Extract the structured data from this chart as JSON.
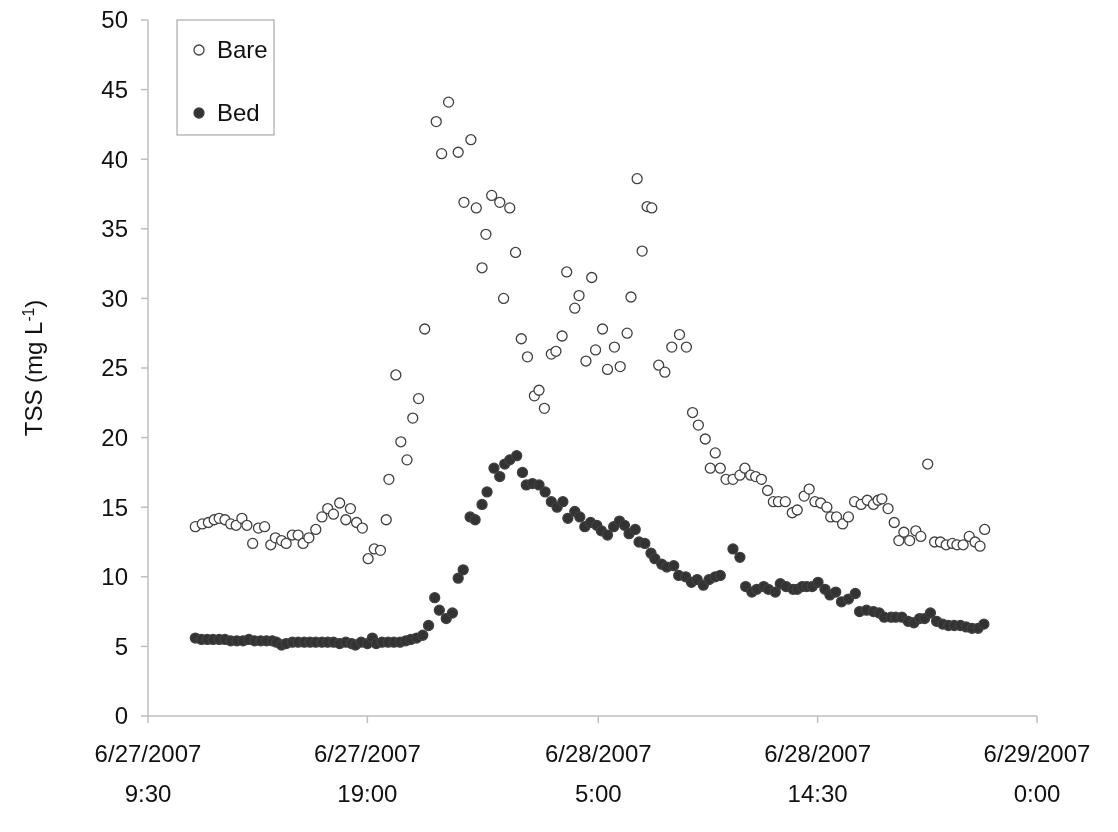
{
  "chart_data": {
    "type": "scatter",
    "ylabel": "TSS (mg L$^{-1}$)",
    "xlim": [
      "2007-06-27T09:30",
      "2007-06-29T00:00"
    ],
    "ylim": [
      0,
      50
    ],
    "xticks": [
      {
        "value": "2007-06-27T09:30",
        "label": "6/27/2007\n9:30"
      },
      {
        "value": "2007-06-27T19:00",
        "label": "6/27/2007\n19:00"
      },
      {
        "value": "2007-06-28T05:00",
        "label": "6/28/2007\n5:00"
      },
      {
        "value": "2007-06-28T14:30",
        "label": "6/28/2007\n14:30"
      },
      {
        "value": "2007-06-29T00:00",
        "label": "6/29/2007\n0:00"
      }
    ],
    "yticks": [
      0,
      5,
      10,
      15,
      20,
      25,
      30,
      35,
      40,
      45,
      50
    ],
    "legend": "top left",
    "marker": "circle",
    "series": [
      {
        "name": "Bare",
        "color": "#ffffff",
        "x": [
          "2007-06-27T11:33",
          "2007-06-27T11:51",
          "2007-06-27T12:07",
          "2007-06-27T12:22",
          "2007-06-27T12:35",
          "2007-06-27T12:50",
          "2007-06-27T13:05",
          "2007-06-27T13:19",
          "2007-06-27T13:34",
          "2007-06-27T13:47",
          "2007-06-27T14:02",
          "2007-06-27T14:17",
          "2007-06-27T14:33",
          "2007-06-27T14:49",
          "2007-06-27T15:01",
          "2007-06-27T15:17",
          "2007-06-27T15:29",
          "2007-06-27T15:45",
          "2007-06-27T16:00",
          "2007-06-27T16:13",
          "2007-06-27T16:28",
          "2007-06-27T16:46",
          "2007-06-27T17:02",
          "2007-06-27T17:17",
          "2007-06-27T17:32",
          "2007-06-27T17:48",
          "2007-06-27T18:04",
          "2007-06-27T18:16",
          "2007-06-27T18:32",
          "2007-06-27T18:47",
          "2007-06-27T19:02",
          "2007-06-27T19:18",
          "2007-06-27T19:34",
          "2007-06-27T19:49",
          "2007-06-27T19:56",
          "2007-06-27T20:14",
          "2007-06-27T20:27",
          "2007-06-27T20:43",
          "2007-06-27T20:58",
          "2007-06-27T21:13",
          "2007-06-27T21:29",
          "2007-06-27T21:59",
          "2007-06-27T22:13",
          "2007-06-27T22:31",
          "2007-06-27T22:56",
          "2007-06-27T23:11",
          "2007-06-27T23:29",
          "2007-06-27T23:43",
          "2007-06-27T23:58",
          "2007-06-28T00:08",
          "2007-06-28T00:23",
          "2007-06-28T00:44",
          "2007-06-28T00:54",
          "2007-06-28T01:10",
          "2007-06-28T01:25",
          "2007-06-28T01:40",
          "2007-06-28T01:56",
          "2007-06-28T02:14",
          "2007-06-28T02:26",
          "2007-06-28T02:40",
          "2007-06-28T02:58",
          "2007-06-28T03:10",
          "2007-06-28T03:26",
          "2007-06-28T03:38",
          "2007-06-28T03:59",
          "2007-06-28T04:10",
          "2007-06-28T04:28",
          "2007-06-28T04:43",
          "2007-06-28T04:53",
          "2007-06-28T05:11",
          "2007-06-28T05:24",
          "2007-06-28T05:42",
          "2007-06-28T05:57",
          "2007-06-28T06:15",
          "2007-06-28T06:25",
          "2007-06-28T06:41",
          "2007-06-28T06:54",
          "2007-06-28T07:07",
          "2007-06-28T07:19",
          "2007-06-28T07:37",
          "2007-06-28T07:53",
          "2007-06-28T08:11",
          "2007-06-28T08:31",
          "2007-06-28T08:49",
          "2007-06-28T09:05",
          "2007-06-28T09:20",
          "2007-06-28T09:38",
          "2007-06-28T09:51",
          "2007-06-28T10:04",
          "2007-06-28T10:17",
          "2007-06-28T10:32",
          "2007-06-28T10:50",
          "2007-06-28T11:08",
          "2007-06-28T11:21",
          "2007-06-28T11:36",
          "2007-06-28T11:49",
          "2007-06-28T12:04",
          "2007-06-28T12:20",
          "2007-06-28T12:35",
          "2007-06-28T12:48",
          "2007-06-28T13:06",
          "2007-06-28T13:24",
          "2007-06-28T13:37",
          "2007-06-28T13:55",
          "2007-06-28T14:08",
          "2007-06-28T14:23",
          "2007-06-28T14:38",
          "2007-06-28T14:54",
          "2007-06-28T15:04",
          "2007-06-28T15:19",
          "2007-06-28T15:35",
          "2007-06-28T15:50",
          "2007-06-28T16:06",
          "2007-06-28T16:23",
          "2007-06-28T16:39",
          "2007-06-28T16:55",
          "2007-06-28T17:07",
          "2007-06-28T17:17",
          "2007-06-28T17:33",
          "2007-06-28T17:49",
          "2007-06-28T18:01",
          "2007-06-28T18:14",
          "2007-06-28T18:29",
          "2007-06-28T18:45",
          "2007-06-28T18:58",
          "2007-06-28T19:16",
          "2007-06-28T19:34",
          "2007-06-28T19:49",
          "2007-06-28T20:04",
          "2007-06-28T20:20",
          "2007-06-28T20:32",
          "2007-06-28T20:48",
          "2007-06-28T21:04",
          "2007-06-28T21:19",
          "2007-06-28T21:32",
          "2007-06-28T21:44"
        ],
        "values": [
          13.6,
          13.8,
          13.9,
          14.1,
          14.2,
          14.1,
          13.8,
          13.7,
          14.2,
          13.7,
          12.4,
          13.5,
          13.6,
          12.3,
          12.8,
          12.6,
          12.4,
          13.0,
          13.0,
          12.4,
          12.8,
          13.4,
          14.3,
          14.9,
          14.5,
          15.3,
          14.1,
          14.9,
          13.9,
          13.5,
          11.3,
          12.0,
          11.9,
          14.1,
          17.0,
          24.5,
          19.7,
          18.4,
          21.4,
          22.8,
          27.8,
          42.7,
          40.4,
          44.1,
          40.5,
          36.9,
          41.4,
          36.5,
          32.2,
          34.6,
          37.4,
          36.9,
          30.0,
          36.5,
          33.3,
          27.1,
          25.8,
          23.0,
          23.4,
          22.1,
          26.0,
          26.2,
          27.3,
          31.9,
          29.3,
          30.2,
          25.5,
          31.5,
          26.3,
          27.8,
          24.9,
          26.5,
          25.1,
          27.5,
          30.1,
          38.6,
          33.4,
          36.6,
          36.5,
          25.2,
          24.7,
          26.5,
          27.4,
          26.5,
          21.8,
          20.9,
          19.9,
          17.8,
          18.9,
          17.8,
          17.0,
          17.0,
          17.3,
          17.8,
          17.3,
          17.2,
          17.0,
          16.2,
          15.4,
          15.4,
          15.4,
          14.6,
          14.8,
          15.8,
          16.3,
          15.4,
          15.3,
          15.0,
          14.3,
          14.3,
          13.8,
          14.3,
          15.4,
          15.2,
          15.5,
          15.2,
          15.5,
          15.6,
          14.9,
          13.9,
          12.6,
          13.2,
          12.6,
          13.3,
          12.9,
          18.1,
          12.5,
          12.5,
          12.3,
          12.4,
          12.3,
          12.3,
          12.9,
          12.5,
          12.2,
          13.4
        ]
      },
      {
        "name": "Bed",
        "color": "#333333",
        "x": [
          "2007-06-27T11:33",
          "2007-06-27T11:49",
          "2007-06-27T12:04",
          "2007-06-27T12:19",
          "2007-06-27T12:35",
          "2007-06-27T12:50",
          "2007-06-27T13:05",
          "2007-06-27T13:21",
          "2007-06-27T13:37",
          "2007-06-27T13:52",
          "2007-06-27T14:07",
          "2007-06-27T14:23",
          "2007-06-27T14:38",
          "2007-06-27T14:53",
          "2007-06-27T15:04",
          "2007-06-27T15:17",
          "2007-06-27T15:29",
          "2007-06-27T15:45",
          "2007-06-27T16:00",
          "2007-06-27T16:16",
          "2007-06-27T16:31",
          "2007-06-27T16:46",
          "2007-06-27T17:02",
          "2007-06-27T17:17",
          "2007-06-27T17:32",
          "2007-06-27T17:48",
          "2007-06-27T18:04",
          "2007-06-27T18:19",
          "2007-06-27T18:29",
          "2007-06-27T18:44",
          "2007-06-27T19:00",
          "2007-06-27T19:13",
          "2007-06-27T19:23",
          "2007-06-27T19:38",
          "2007-06-27T19:54",
          "2007-06-27T20:09",
          "2007-06-27T20:25",
          "2007-06-27T20:40",
          "2007-06-27T20:53",
          "2007-06-27T21:08",
          "2007-06-27T21:24",
          "2007-06-27T21:39",
          "2007-06-27T21:55",
          "2007-06-27T22:07",
          "2007-06-27T22:25",
          "2007-06-27T22:41",
          "2007-06-27T22:56",
          "2007-06-27T23:09",
          "2007-06-27T23:27",
          "2007-06-27T23:40",
          "2007-06-27T23:58",
          "2007-06-28T00:11",
          "2007-06-28T00:29",
          "2007-06-28T00:44",
          "2007-06-28T00:57",
          "2007-06-28T01:10",
          "2007-06-28T01:28",
          "2007-06-28T01:43",
          "2007-06-28T01:53",
          "2007-06-28T02:09",
          "2007-06-28T02:26",
          "2007-06-28T02:42",
          "2007-06-28T02:58",
          "2007-06-28T03:13",
          "2007-06-28T03:28",
          "2007-06-28T03:41",
          "2007-06-28T03:59",
          "2007-06-28T04:12",
          "2007-06-28T04:25",
          "2007-06-28T04:40",
          "2007-06-28T04:56",
          "2007-06-28T05:08",
          "2007-06-28T05:24",
          "2007-06-28T05:40",
          "2007-06-28T05:55",
          "2007-06-28T06:08",
          "2007-06-28T06:20",
          "2007-06-28T06:36",
          "2007-06-28T06:46",
          "2007-06-28T07:01",
          "2007-06-28T07:17",
          "2007-06-28T07:27",
          "2007-06-28T07:45",
          "2007-06-28T07:58",
          "2007-06-28T08:16",
          "2007-06-28T08:29",
          "2007-06-28T08:47",
          "2007-06-28T09:02",
          "2007-06-28T09:17",
          "2007-06-28T09:33",
          "2007-06-28T09:48",
          "2007-06-28T10:04",
          "2007-06-28T10:17",
          "2007-06-28T10:50",
          "2007-06-28T11:08",
          "2007-06-28T11:23",
          "2007-06-28T11:39",
          "2007-06-28T11:52",
          "2007-06-28T12:10",
          "2007-06-28T12:22",
          "2007-06-28T12:40",
          "2007-06-28T12:53",
          "2007-06-28T13:08",
          "2007-06-28T13:26",
          "2007-06-28T13:37",
          "2007-06-28T13:50",
          "2007-06-28T14:02",
          "2007-06-28T14:16",
          "2007-06-28T14:31",
          "2007-06-28T14:49",
          "2007-06-28T15:02",
          "2007-06-28T15:17",
          "2007-06-28T15:32",
          "2007-06-28T15:50",
          "2007-06-28T16:08",
          "2007-06-28T16:19",
          "2007-06-28T16:37",
          "2007-06-28T16:55",
          "2007-06-28T17:10",
          "2007-06-28T17:23",
          "2007-06-28T17:41",
          "2007-06-28T17:53",
          "2007-06-28T18:09",
          "2007-06-28T18:25",
          "2007-06-28T18:40",
          "2007-06-28T18:55",
          "2007-06-28T19:08",
          "2007-06-28T19:23",
          "2007-06-28T19:39",
          "2007-06-28T19:55",
          "2007-06-28T20:10",
          "2007-06-28T20:25",
          "2007-06-28T20:41",
          "2007-06-28T20:56",
          "2007-06-28T21:11",
          "2007-06-28T21:27",
          "2007-06-28T21:42"
        ],
        "values": [
          5.6,
          5.5,
          5.5,
          5.5,
          5.5,
          5.5,
          5.4,
          5.4,
          5.4,
          5.5,
          5.4,
          5.4,
          5.4,
          5.4,
          5.3,
          5.1,
          5.2,
          5.3,
          5.3,
          5.3,
          5.3,
          5.3,
          5.3,
          5.3,
          5.3,
          5.2,
          5.3,
          5.2,
          5.1,
          5.3,
          5.2,
          5.6,
          5.2,
          5.3,
          5.3,
          5.3,
          5.3,
          5.4,
          5.5,
          5.6,
          5.8,
          6.5,
          8.5,
          7.6,
          7.0,
          7.4,
          9.9,
          10.5,
          14.3,
          14.1,
          15.2,
          16.1,
          17.8,
          17.2,
          18.1,
          18.4,
          18.7,
          17.5,
          16.6,
          16.7,
          16.6,
          16.1,
          15.4,
          15.0,
          15.4,
          14.2,
          14.7,
          14.3,
          13.6,
          13.9,
          13.7,
          13.3,
          13.0,
          13.6,
          14.0,
          13.7,
          13.1,
          13.4,
          12.5,
          12.4,
          11.7,
          11.3,
          10.9,
          10.7,
          10.8,
          10.1,
          10.0,
          9.6,
          9.8,
          9.4,
          9.8,
          10.0,
          10.1,
          12.0,
          11.4,
          9.3,
          8.9,
          9.1,
          9.3,
          9.1,
          8.9,
          9.5,
          9.3,
          9.1,
          9.1,
          9.3,
          9.3,
          9.3,
          9.6,
          9.1,
          8.7,
          8.9,
          8.2,
          8.4,
          8.8,
          7.5,
          7.6,
          7.5,
          7.4,
          7.1,
          7.1,
          7.1,
          7.1,
          6.8,
          6.7,
          7.0,
          7.0,
          7.4,
          6.8,
          6.6,
          6.5,
          6.5,
          6.5,
          6.4,
          6.3,
          6.3,
          6.6
        ]
      }
    ]
  }
}
